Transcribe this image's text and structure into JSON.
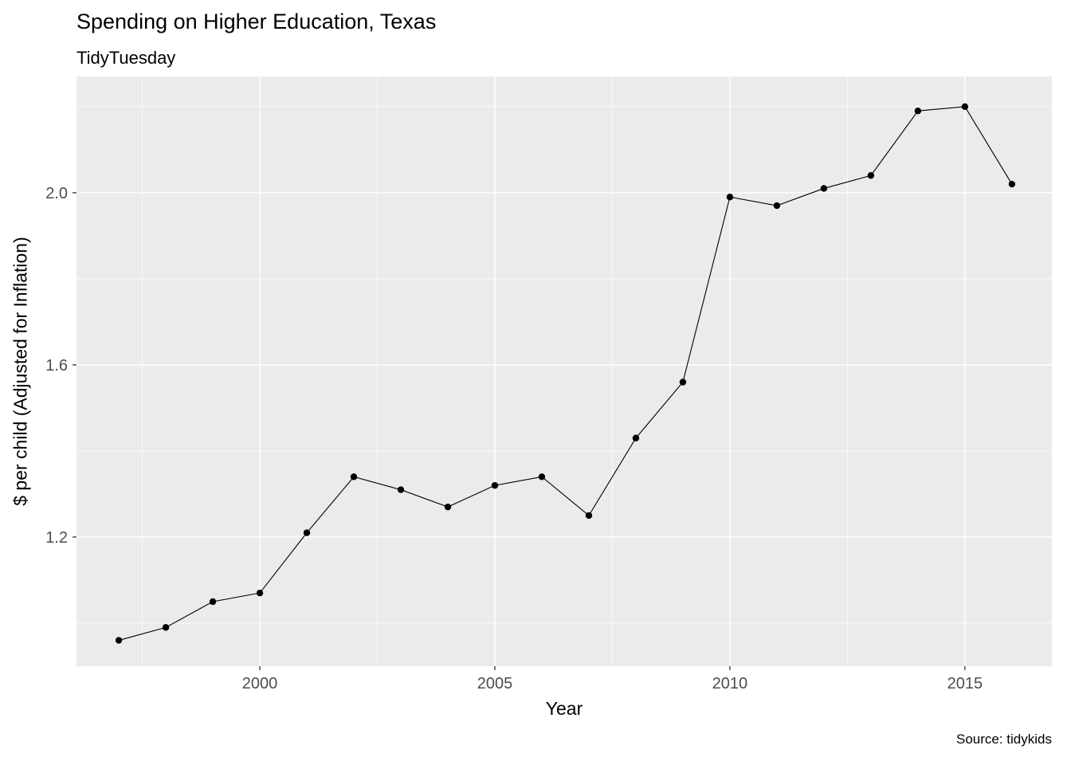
{
  "chart_data": {
    "type": "line",
    "title": "Spending on Higher Education, Texas",
    "subtitle": "TidyTuesday",
    "xlabel": "Year",
    "ylabel": "$ per child (Adjusted for Inflation)",
    "caption": "Source: tidykids",
    "x": [
      1997,
      1998,
      1999,
      2000,
      2001,
      2002,
      2003,
      2004,
      2005,
      2006,
      2007,
      2008,
      2009,
      2010,
      2011,
      2012,
      2013,
      2014,
      2015,
      2016
    ],
    "values": [
      0.96,
      0.99,
      1.05,
      1.07,
      1.21,
      1.34,
      1.31,
      1.27,
      1.32,
      1.34,
      1.25,
      1.43,
      1.56,
      1.99,
      1.97,
      2.01,
      2.04,
      2.19,
      2.2,
      2.02
    ],
    "xlim": [
      1996.1,
      2016.85
    ],
    "ylim": [
      0.9,
      2.27
    ],
    "x_ticks": [
      2000,
      2005,
      2010,
      2015
    ],
    "x_tick_labels": [
      "2000",
      "2005",
      "2010",
      "2015"
    ],
    "y_ticks": [
      1.2,
      1.6,
      2.0
    ],
    "y_tick_labels": [
      "1.2",
      "1.6",
      "2.0"
    ],
    "x_minor": [
      1997.5,
      2002.5,
      2007.5,
      2012.5
    ],
    "y_minor": [
      1.0,
      1.4,
      1.8,
      2.2
    ],
    "grid": true,
    "legend_position": "none",
    "colors": {
      "panel_bg": "#EBEBEB",
      "grid_major": "#FFFFFF",
      "grid_minor": "#FFFFFF",
      "line": "#000000",
      "point": "#000000",
      "tick_label": "#4D4D4D",
      "tick_mark": "#333333",
      "text": "#000000"
    }
  }
}
